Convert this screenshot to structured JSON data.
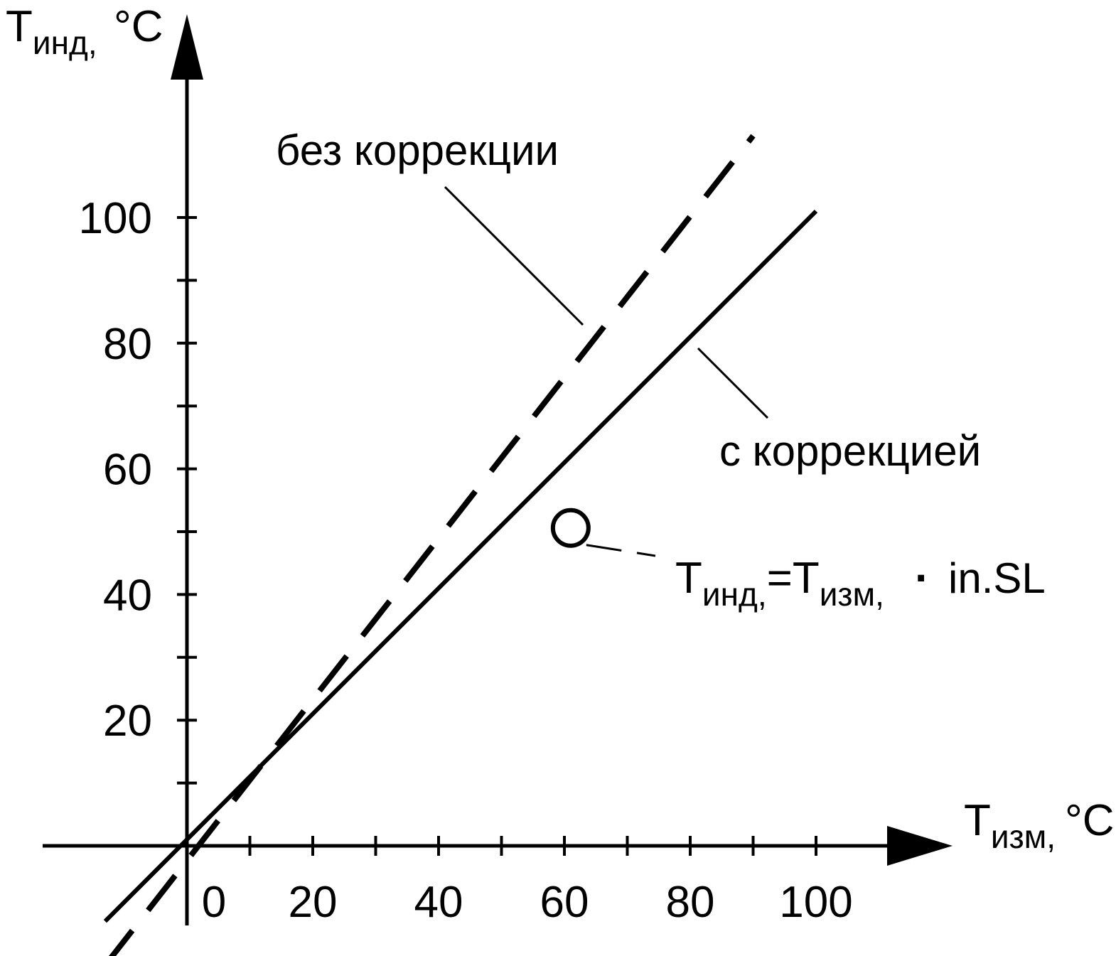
{
  "chart_data": {
    "type": "line",
    "title": "",
    "y_axis_label": {
      "main": "T",
      "sub": "инд,",
      "unit": "°C"
    },
    "x_axis_label": {
      "main": "T",
      "sub": "изм,",
      "unit": "°C"
    },
    "x_ticks": {
      "labels": [
        "0",
        "20",
        "40",
        "60",
        "80",
        "100"
      ],
      "values": [
        0,
        20,
        40,
        60,
        80,
        100
      ],
      "minor_step": 10
    },
    "y_ticks": {
      "labels": [
        "20",
        "40",
        "60",
        "80",
        "100"
      ],
      "values": [
        20,
        40,
        60,
        80,
        100
      ],
      "minor_step": 10
    },
    "xlim": [
      -13,
      121
    ],
    "ylim": [
      -19,
      128
    ],
    "grid": false,
    "series": [
      {
        "name": "без коррекции",
        "style": "dashed",
        "points": [
          [
            -13,
            -19
          ],
          [
            90,
            113
          ]
        ]
      },
      {
        "name": "с коррекцией",
        "style": "solid",
        "points": [
          [
            -13,
            -12
          ],
          [
            100,
            101
          ]
        ]
      }
    ],
    "marker": {
      "x": 61,
      "y": 61,
      "shape": "open-circle"
    },
    "formula": {
      "part1_main": "T",
      "part1_sub": "инд,",
      "eq": "=",
      "part2_main": "T",
      "part2_sub": "изм,",
      "dot": "·",
      "param": "in.SL"
    },
    "colors": {
      "ink": "#000000",
      "background": "#ffffff"
    }
  }
}
